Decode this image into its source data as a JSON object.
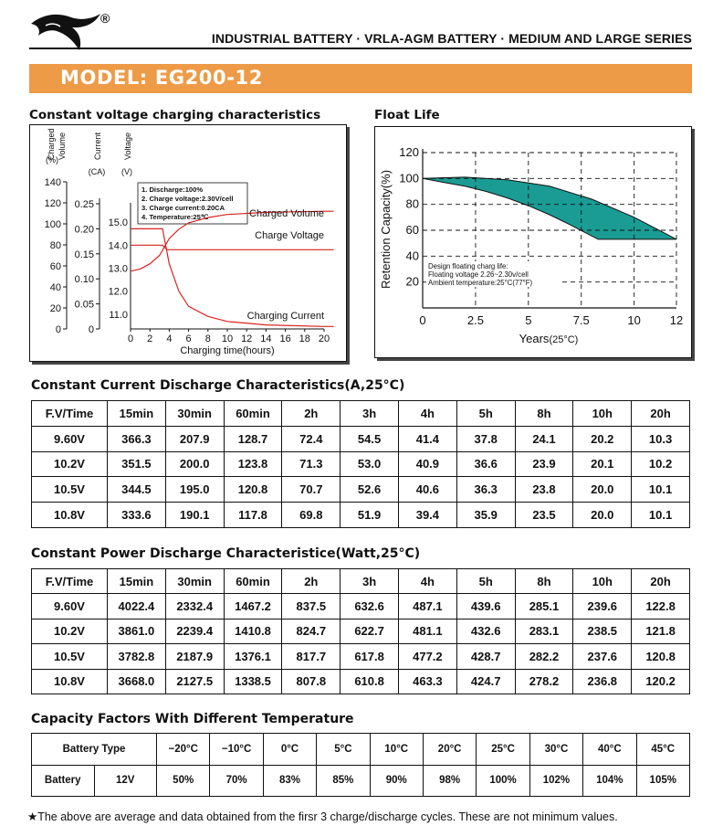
{
  "header": {
    "registered_mark": "®",
    "series_title": "INDUSTRIAL BATTERY · VRLA-AGM BATTERY · MEDIUM AND LARGE SERIES",
    "model_title": "MODEL: EG200-12"
  },
  "charging_chart": {
    "section_title": "Constant voltage charging characteristics",
    "axis_headers": {
      "volume": [
        "Charged",
        "Volume",
        "(%)"
      ],
      "current": [
        "Current",
        "(CA)"
      ],
      "voltage": [
        "Voltage",
        "(V)"
      ]
    },
    "notes": [
      "1. Discharge:100%",
      "2. Charge voltage:2.30V/cell",
      "3. Charge current:0.20CA",
      "4. Temperature:25℃"
    ],
    "curve_labels": {
      "volume": "Charged Volume",
      "voltage": "Charge Voltage",
      "current": "Charging Current"
    },
    "xlabel": "Charging time(hours)",
    "chart_data": {
      "type": "line",
      "x_ticks": [
        "0",
        "2",
        "4",
        "6",
        "8",
        "10",
        "12",
        "14",
        "16",
        "18",
        "20"
      ],
      "volume_ticks": [
        "0",
        "20",
        "40",
        "60",
        "80",
        "100",
        "120",
        "140"
      ],
      "current_ticks": [
        "0",
        "0.05",
        "0.10",
        "0.15",
        "0.20",
        "0.25"
      ],
      "voltage_ticks": [
        "11.0",
        "12.0",
        "13.0",
        "14.0",
        "15.0"
      ],
      "series": [
        {
          "name": "Charged Volume",
          "axis": "volume",
          "x": [
            0,
            1,
            2,
            3,
            3.5,
            4,
            5,
            6,
            8,
            10,
            14,
            20,
            21
          ],
          "y": [
            55,
            57,
            62,
            70,
            78,
            86,
            95,
            101,
            106,
            109,
            111,
            112,
            112
          ]
        },
        {
          "name": "Charge Voltage",
          "axis": "voltage",
          "x": [
            0,
            3.3,
            3.8,
            21
          ],
          "y": [
            14.0,
            14.0,
            13.8,
            13.8
          ]
        },
        {
          "name": "Charging Current",
          "axis": "current",
          "x": [
            0,
            3.3,
            4,
            5,
            6,
            8,
            10,
            14,
            20,
            21
          ],
          "y": [
            0.2,
            0.2,
            0.13,
            0.075,
            0.045,
            0.025,
            0.015,
            0.008,
            0.005,
            0.005
          ]
        }
      ]
    }
  },
  "float_chart": {
    "section_title": "Float Life",
    "ylabel": "Retention Capacity(%)",
    "xlabel_main": "Years",
    "xlabel_unit": "(25°C)",
    "notes": [
      "Design floating charg life:",
      "Floating voltage 2.26~2.30v/cell",
      "Ambient temperature:25°C(77°F)"
    ],
    "fill_color": "#1a9c94",
    "chart_data": {
      "type": "area",
      "x_ticks": [
        "0",
        "2.5",
        "5",
        "7.5",
        "10",
        "12"
      ],
      "y_ticks": [
        "20",
        "40",
        "60",
        "80",
        "100",
        "120"
      ],
      "xlim": [
        0,
        12
      ],
      "ylim": [
        0,
        120
      ],
      "grid": true,
      "upper": {
        "x": [
          0,
          2,
          4,
          6,
          8,
          10,
          12
        ],
        "y": [
          100,
          101,
          99,
          94,
          84,
          70,
          53
        ]
      },
      "lower": {
        "x": [
          0,
          1,
          2,
          3,
          4,
          5,
          6,
          7,
          8.3,
          12
        ],
        "y": [
          100,
          97,
          94,
          90,
          85,
          79,
          72,
          64,
          53,
          53
        ]
      }
    }
  },
  "cc_table": {
    "title": "Constant Current Discharge Characteristics(A,25°C)",
    "headers": [
      "F.V/Time",
      "15min",
      "30min",
      "60min",
      "2h",
      "3h",
      "4h",
      "5h",
      "8h",
      "10h",
      "20h"
    ],
    "rows": [
      [
        "9.60V",
        "366.3",
        "207.9",
        "128.7",
        "72.4",
        "54.5",
        "41.4",
        "37.8",
        "24.1",
        "20.2",
        "10.3"
      ],
      [
        "10.2V",
        "351.5",
        "200.0",
        "123.8",
        "71.3",
        "53.0",
        "40.9",
        "36.6",
        "23.9",
        "20.1",
        "10.2"
      ],
      [
        "10.5V",
        "344.5",
        "195.0",
        "120.8",
        "70.7",
        "52.6",
        "40.6",
        "36.3",
        "23.8",
        "20.0",
        "10.1"
      ],
      [
        "10.8V",
        "333.6",
        "190.1",
        "117.8",
        "69.8",
        "51.9",
        "39.4",
        "35.9",
        "23.5",
        "20.0",
        "10.1"
      ]
    ]
  },
  "cp_table": {
    "title": "Constant Power Discharge Characteristice(Watt,25°C)",
    "headers": [
      "F.V/Time",
      "15min",
      "30min",
      "60min",
      "2h",
      "3h",
      "4h",
      "5h",
      "8h",
      "10h",
      "20h"
    ],
    "rows": [
      [
        "9.60V",
        "4022.4",
        "2332.4",
        "1467.2",
        "837.5",
        "632.6",
        "487.1",
        "439.6",
        "285.1",
        "239.6",
        "122.8"
      ],
      [
        "10.2V",
        "3861.0",
        "2239.4",
        "1410.8",
        "824.7",
        "622.7",
        "481.1",
        "432.6",
        "283.1",
        "238.5",
        "121.8"
      ],
      [
        "10.5V",
        "3782.8",
        "2187.9",
        "1376.1",
        "817.7",
        "617.8",
        "477.2",
        "428.7",
        "282.2",
        "237.6",
        "120.8"
      ],
      [
        "10.8V",
        "3668.0",
        "2127.5",
        "1338.5",
        "807.8",
        "610.8",
        "463.3",
        "424.7",
        "278.2",
        "236.8",
        "120.2"
      ]
    ]
  },
  "temp_table": {
    "title": "Capacity Factors With Different Temperature",
    "type_label": "Battery Type",
    "temps": [
      "−20°C",
      "−10°C",
      "0°C",
      "5°C",
      "10°C",
      "20°C",
      "25°C",
      "30°C",
      "40°C",
      "45°C"
    ],
    "row_label": "Battery",
    "row_voltage": "12V",
    "values": [
      "50%",
      "70%",
      "83%",
      "85%",
      "90%",
      "98%",
      "100%",
      "102%",
      "104%",
      "105%"
    ]
  },
  "footnote": "★The above are average and data obtained from the firsr 3 charge/discharge cycles. These are not minimum values."
}
